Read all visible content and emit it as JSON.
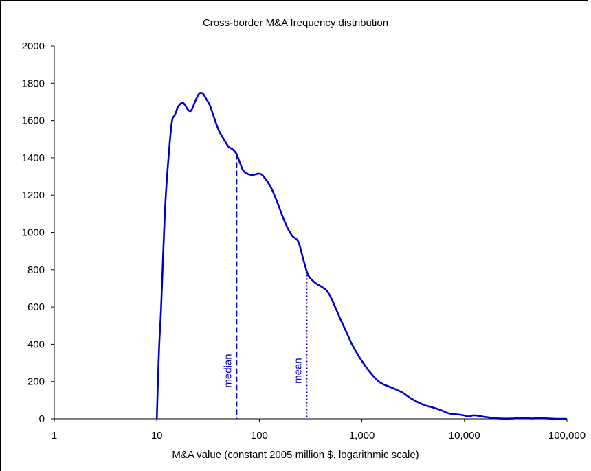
{
  "chart_data": {
    "type": "line",
    "title": "Cross-border M&A frequency distribution",
    "xlabel": "M&A value (constant 2005 million $, logarithmic scale)",
    "ylabel": "",
    "xscale": "log",
    "xlim": [
      1,
      100000
    ],
    "ylim": [
      0,
      2000
    ],
    "grid": false,
    "legend": "none",
    "x_ticks": [
      {
        "value": 1,
        "label": "1"
      },
      {
        "value": 10,
        "label": "10"
      },
      {
        "value": 100,
        "label": "100"
      },
      {
        "value": 1000,
        "label": "1,000"
      },
      {
        "value": 10000,
        "label": "10,000"
      },
      {
        "value": 100000,
        "label": "100,000"
      }
    ],
    "y_ticks": [
      {
        "value": 0,
        "label": "0"
      },
      {
        "value": 200,
        "label": "200"
      },
      {
        "value": 400,
        "label": "400"
      },
      {
        "value": 600,
        "label": "600"
      },
      {
        "value": 800,
        "label": "800"
      },
      {
        "value": 1000,
        "label": "1000"
      },
      {
        "value": 1200,
        "label": "1200"
      },
      {
        "value": 1400,
        "label": "1400"
      },
      {
        "value": 1600,
        "label": "1600"
      },
      {
        "value": 1800,
        "label": "1800"
      },
      {
        "value": 2000,
        "label": "2000"
      }
    ],
    "series": [
      {
        "color": "#0000cc",
        "points": [
          [
            10,
            0
          ],
          [
            10.5,
            370
          ],
          [
            11,
            590
          ],
          [
            12,
            1110
          ],
          [
            13,
            1400
          ],
          [
            14,
            1590
          ],
          [
            15,
            1630
          ],
          [
            16,
            1670
          ],
          [
            17,
            1690
          ],
          [
            18,
            1695
          ],
          [
            19,
            1680
          ],
          [
            20,
            1660
          ],
          [
            21,
            1650
          ],
          [
            22,
            1660
          ],
          [
            24,
            1710
          ],
          [
            26,
            1745
          ],
          [
            28,
            1745
          ],
          [
            30,
            1720
          ],
          [
            33,
            1680
          ],
          [
            36,
            1620
          ],
          [
            40,
            1550
          ],
          [
            45,
            1500
          ],
          [
            50,
            1460
          ],
          [
            55,
            1445
          ],
          [
            60,
            1420
          ],
          [
            65,
            1370
          ],
          [
            70,
            1330
          ],
          [
            80,
            1310
          ],
          [
            90,
            1310
          ],
          [
            100,
            1315
          ],
          [
            110,
            1300
          ],
          [
            130,
            1240
          ],
          [
            150,
            1160
          ],
          [
            170,
            1080
          ],
          [
            190,
            1020
          ],
          [
            210,
            980
          ],
          [
            240,
            950
          ],
          [
            270,
            850
          ],
          [
            300,
            770
          ],
          [
            350,
            730
          ],
          [
            400,
            710
          ],
          [
            450,
            690
          ],
          [
            500,
            650
          ],
          [
            600,
            550
          ],
          [
            700,
            470
          ],
          [
            800,
            400
          ],
          [
            900,
            350
          ],
          [
            1000,
            310
          ],
          [
            1200,
            250
          ],
          [
            1500,
            195
          ],
          [
            2000,
            165
          ],
          [
            2500,
            140
          ],
          [
            3000,
            110
          ],
          [
            4000,
            75
          ],
          [
            5000,
            60
          ],
          [
            6000,
            45
          ],
          [
            7000,
            30
          ],
          [
            8000,
            25
          ],
          [
            9000,
            22
          ],
          [
            10000,
            18
          ],
          [
            11000,
            12
          ],
          [
            12000,
            18
          ],
          [
            13000,
            18
          ],
          [
            15000,
            12
          ],
          [
            17000,
            8
          ],
          [
            20000,
            3
          ],
          [
            25000,
            1
          ],
          [
            30000,
            2
          ],
          [
            35000,
            5
          ],
          [
            40000,
            4
          ],
          [
            45000,
            2
          ],
          [
            50000,
            3
          ],
          [
            55000,
            5
          ],
          [
            60000,
            3
          ],
          [
            70000,
            1
          ],
          [
            80000,
            0
          ],
          [
            100000,
            0
          ]
        ]
      }
    ],
    "markers": [
      {
        "label": "median",
        "x": 60,
        "y_top": 1420,
        "style": "dashed"
      },
      {
        "label": "mean",
        "x": 290,
        "y_top": 790,
        "style": "dotted"
      }
    ]
  }
}
